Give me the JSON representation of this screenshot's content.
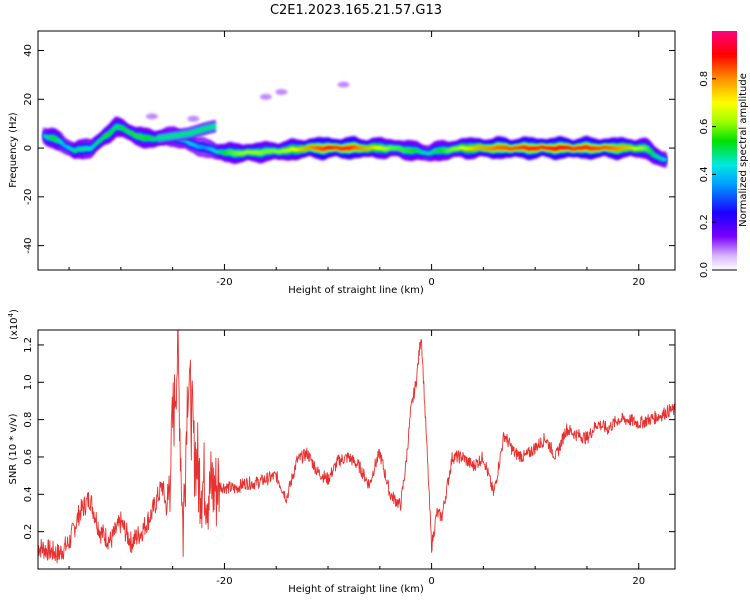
{
  "chart_data": [
    {
      "type": "heatmap",
      "title": "C2E1.2023.165.21.57.G13",
      "xlabel": "Height of straight line (km)",
      "ylabel": "Frequency (Hz)",
      "xlim": [
        -38,
        23.5
      ],
      "ylim": [
        -50,
        48
      ],
      "xticks": [
        -20,
        0,
        20
      ],
      "yticks": [
        -40,
        -20,
        0,
        20,
        40
      ],
      "colorbar": {
        "label": "Normalized spectral amplitude",
        "range": [
          0,
          1
        ],
        "ticks": [
          0.0,
          0.2,
          0.4,
          0.6,
          0.8
        ]
      },
      "ridge": [
        {
          "x": -37.5,
          "y": 5,
          "amp": 0.45
        },
        {
          "x": -36.5,
          "y": 4,
          "amp": 0.55
        },
        {
          "x": -35.5,
          "y": 1,
          "amp": 0.4
        },
        {
          "x": -34.5,
          "y": -1,
          "amp": 0.5
        },
        {
          "x": -33,
          "y": 0,
          "amp": 0.45
        },
        {
          "x": -31.5,
          "y": 5,
          "amp": 0.55
        },
        {
          "x": -30.5,
          "y": 9,
          "amp": 0.5
        },
        {
          "x": -29.5,
          "y": 7,
          "amp": 0.55
        },
        {
          "x": -28,
          "y": 4,
          "amp": 0.55
        },
        {
          "x": -26.5,
          "y": 4,
          "amp": 0.5
        },
        {
          "x": -25,
          "y": 5,
          "amp": 0.45
        },
        {
          "x": -23.5,
          "y": 2,
          "amp": 0.45
        },
        {
          "x": -22,
          "y": 0,
          "amp": 0.35
        },
        {
          "x": -20,
          "y": -2,
          "amp": 0.55
        },
        {
          "x": -18,
          "y": -2,
          "amp": 0.65
        },
        {
          "x": -16,
          "y": -1.5,
          "amp": 0.6
        },
        {
          "x": -14,
          "y": -1,
          "amp": 0.65
        },
        {
          "x": -12,
          "y": 0,
          "amp": 0.8
        },
        {
          "x": -10,
          "y": 0,
          "amp": 0.9
        },
        {
          "x": -8,
          "y": 0,
          "amp": 0.88
        },
        {
          "x": -6,
          "y": 0,
          "amp": 0.75
        },
        {
          "x": -4,
          "y": 0,
          "amp": 0.6
        },
        {
          "x": -2,
          "y": -1,
          "amp": 0.55
        },
        {
          "x": -0.5,
          "y": -2,
          "amp": 0.45
        },
        {
          "x": 1,
          "y": -1,
          "amp": 0.55
        },
        {
          "x": 3,
          "y": 0,
          "amp": 0.7
        },
        {
          "x": 5,
          "y": 0,
          "amp": 0.8
        },
        {
          "x": 7,
          "y": 0,
          "amp": 0.85
        },
        {
          "x": 9,
          "y": 0,
          "amp": 0.88
        },
        {
          "x": 11,
          "y": 0,
          "amp": 0.9
        },
        {
          "x": 13,
          "y": 0,
          "amp": 0.9
        },
        {
          "x": 15,
          "y": 0,
          "amp": 0.88
        },
        {
          "x": 17,
          "y": 0,
          "amp": 0.85
        },
        {
          "x": 19,
          "y": 0,
          "amp": 0.75
        },
        {
          "x": 20.5,
          "y": 0,
          "amp": 0.6
        },
        {
          "x": 21.5,
          "y": -3,
          "amp": 0.5
        },
        {
          "x": 22.5,
          "y": -5,
          "amp": 0.45
        }
      ],
      "upper_branch": [
        {
          "x": -26.5,
          "y": 4
        },
        {
          "x": -25,
          "y": 5
        },
        {
          "x": -23.5,
          "y": 6
        },
        {
          "x": -22,
          "y": 8
        },
        {
          "x": -21,
          "y": 9
        }
      ],
      "faint_patches": [
        {
          "x": -16,
          "y": 21
        },
        {
          "x": -14.5,
          "y": 23
        },
        {
          "x": -8.5,
          "y": 26
        },
        {
          "x": -27,
          "y": 13
        },
        {
          "x": -23,
          "y": 12
        }
      ]
    },
    {
      "type": "line",
      "xlabel": "Height of straight line (km)",
      "ylabel": "SNR (10 * v/v)",
      "yscale_label": "(x10",
      "yscale_exp": "4",
      "y_multiplier": 10000,
      "xlim": [
        -38,
        23.5
      ],
      "ylim": [
        0,
        1.28
      ],
      "xticks": [
        -20,
        0,
        20
      ],
      "yticks": [
        0.2,
        0.4,
        0.6,
        0.8,
        1.0,
        1.2
      ],
      "ytick_labels": [
        "0.2",
        "0.4",
        "0.6",
        "0.8",
        "1.0",
        "1.2"
      ],
      "color": "#e8312f",
      "x": [
        -38,
        -37,
        -36,
        -35,
        -34,
        -33,
        -32,
        -31,
        -30,
        -29,
        -28,
        -27,
        -26,
        -25.5,
        -25,
        -24.5,
        -24,
        -23.5,
        -23,
        -22.5,
        -22,
        -21.5,
        -21,
        -20,
        -19,
        -18,
        -17,
        -16,
        -15,
        -14,
        -13,
        -12,
        -11,
        -10,
        -9,
        -8,
        -7,
        -6,
        -5.5,
        -5,
        -4,
        -3,
        -2.5,
        -2,
        -1.5,
        -1,
        -0.5,
        0,
        0.5,
        1,
        2,
        3,
        4,
        5,
        6,
        7,
        8,
        9,
        10,
        11,
        12,
        13,
        14,
        15,
        16,
        17,
        18,
        19,
        20,
        21,
        22,
        23,
        23.5
      ],
      "y": [
        0.12,
        0.1,
        0.08,
        0.14,
        0.3,
        0.38,
        0.2,
        0.15,
        0.25,
        0.14,
        0.2,
        0.3,
        0.45,
        0.3,
        0.78,
        1.17,
        0.2,
        1.07,
        0.7,
        0.5,
        0.45,
        0.42,
        0.45,
        0.44,
        0.43,
        0.46,
        0.46,
        0.48,
        0.5,
        0.38,
        0.58,
        0.62,
        0.52,
        0.48,
        0.58,
        0.6,
        0.55,
        0.45,
        0.55,
        0.62,
        0.4,
        0.34,
        0.55,
        0.85,
        1.0,
        1.26,
        0.7,
        0.12,
        0.3,
        0.28,
        0.6,
        0.6,
        0.55,
        0.6,
        0.4,
        0.72,
        0.62,
        0.6,
        0.65,
        0.7,
        0.6,
        0.75,
        0.72,
        0.7,
        0.78,
        0.75,
        0.8,
        0.8,
        0.78,
        0.8,
        0.82,
        0.85,
        0.85
      ]
    }
  ]
}
